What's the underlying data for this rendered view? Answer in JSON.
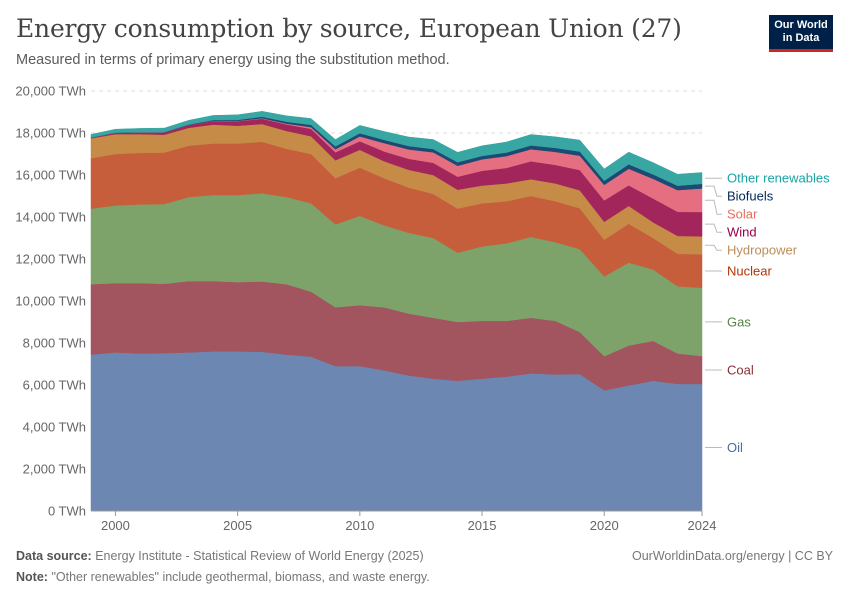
{
  "header": {
    "title": "Energy consumption by source, European Union (27)",
    "subtitle": "Measured in terms of primary energy using the substitution method.",
    "logo_line1": "Our World",
    "logo_line2": "in Data"
  },
  "footer": {
    "source_label": "Data source:",
    "source_text": "Energy Institute - Statistical Review of World Energy (2025)",
    "credit": "OurWorldinData.org/energy | CC BY",
    "note_label": "Note:",
    "note_text": "\"Other renewables\" include geothermal, biomass, and waste energy."
  },
  "chart_data": {
    "type": "area",
    "stacked": true,
    "x": [
      1999,
      2000,
      2001,
      2002,
      2003,
      2004,
      2005,
      2006,
      2007,
      2008,
      2009,
      2010,
      2011,
      2012,
      2013,
      2014,
      2015,
      2016,
      2017,
      2018,
      2019,
      2020,
      2021,
      2022,
      2023,
      2024
    ],
    "x_ticks": [
      2000,
      2005,
      2010,
      2015,
      2020,
      2024
    ],
    "y_ticks": [
      0,
      2000,
      4000,
      6000,
      8000,
      10000,
      12000,
      14000,
      16000,
      18000,
      20000
    ],
    "y_tick_labels": [
      "0 TWh",
      "2,000 TWh",
      "4,000 TWh",
      "6,000 TWh",
      "8,000 TWh",
      "10,000 TWh",
      "12,000 TWh",
      "14,000 TWh",
      "16,000 TWh",
      "18,000 TWh",
      "20,000 TWh"
    ],
    "ylim": [
      0,
      20000
    ],
    "unit": "TWh",
    "grid": true,
    "legend": "right-inline",
    "series": [
      {
        "name": "Oil",
        "color": "#6d87b3",
        "label_color": "#4c6a9c",
        "values": [
          7450,
          7550,
          7500,
          7520,
          7550,
          7600,
          7600,
          7580,
          7450,
          7350,
          6900,
          6900,
          6700,
          6450,
          6300,
          6200,
          6300,
          6400,
          6550,
          6500,
          6520,
          5750,
          5980,
          6200,
          6050,
          6050
        ]
      },
      {
        "name": "Coal",
        "color": "#a2545f",
        "label_color": "#883039",
        "values": [
          3350,
          3300,
          3350,
          3300,
          3400,
          3350,
          3300,
          3350,
          3350,
          3100,
          2800,
          2900,
          3000,
          2950,
          2900,
          2800,
          2750,
          2650,
          2650,
          2550,
          2000,
          1620,
          1900,
          1900,
          1450,
          1330
        ]
      },
      {
        "name": "Gas",
        "color": "#7da36a",
        "label_color": "#578145",
        "values": [
          3600,
          3700,
          3750,
          3800,
          4000,
          4100,
          4150,
          4200,
          4150,
          4200,
          3950,
          4250,
          3900,
          3850,
          3800,
          3300,
          3550,
          3700,
          3850,
          3750,
          3950,
          3800,
          3950,
          3400,
          3200,
          3250
        ]
      },
      {
        "name": "Nuclear",
        "color": "#c65e3b",
        "label_color": "#b13507",
        "values": [
          2400,
          2450,
          2450,
          2450,
          2450,
          2450,
          2450,
          2450,
          2300,
          2350,
          2200,
          2300,
          2250,
          2150,
          2100,
          2100,
          2050,
          2000,
          1950,
          1950,
          1950,
          1750,
          1850,
          1500,
          1550,
          1600
        ]
      },
      {
        "name": "Hydropower",
        "color": "#c68b46",
        "label_color": "#bc8e5a",
        "values": [
          950,
          950,
          900,
          850,
          850,
          900,
          850,
          850,
          850,
          850,
          850,
          850,
          800,
          850,
          900,
          900,
          850,
          850,
          800,
          850,
          850,
          850,
          850,
          750,
          850,
          850
        ]
      },
      {
        "name": "Wind",
        "color": "#a2255b",
        "label_color": "#970046",
        "values": [
          30,
          60,
          80,
          110,
          130,
          170,
          210,
          250,
          310,
          350,
          380,
          410,
          470,
          520,
          580,
          620,
          700,
          740,
          850,
          880,
          970,
          1020,
          980,
          1130,
          1150,
          1160
        ]
      },
      {
        "name": "Solar",
        "color": "#e56e81",
        "label_color": "#e56e5a",
        "values": [
          0,
          0,
          0,
          0,
          0,
          10,
          15,
          25,
          40,
          80,
          150,
          230,
          400,
          450,
          500,
          520,
          550,
          560,
          580,
          620,
          680,
          740,
          790,
          940,
          1030,
          1120
        ]
      },
      {
        "name": "Biofuels",
        "color": "#1c4a74",
        "label_color": "#00295b",
        "values": [
          5,
          10,
          10,
          15,
          25,
          40,
          50,
          70,
          90,
          110,
          130,
          150,
          150,
          160,
          160,
          170,
          160,
          170,
          180,
          190,
          200,
          200,
          210,
          210,
          210,
          220
        ]
      },
      {
        "name": "Other renewables",
        "color": "#38a6a2",
        "label_color": "#18a5a5",
        "values": [
          150,
          160,
          180,
          190,
          200,
          220,
          240,
          260,
          280,
          300,
          330,
          370,
          400,
          430,
          450,
          470,
          480,
          500,
          520,
          530,
          540,
          560,
          580,
          560,
          550,
          540
        ]
      }
    ]
  }
}
